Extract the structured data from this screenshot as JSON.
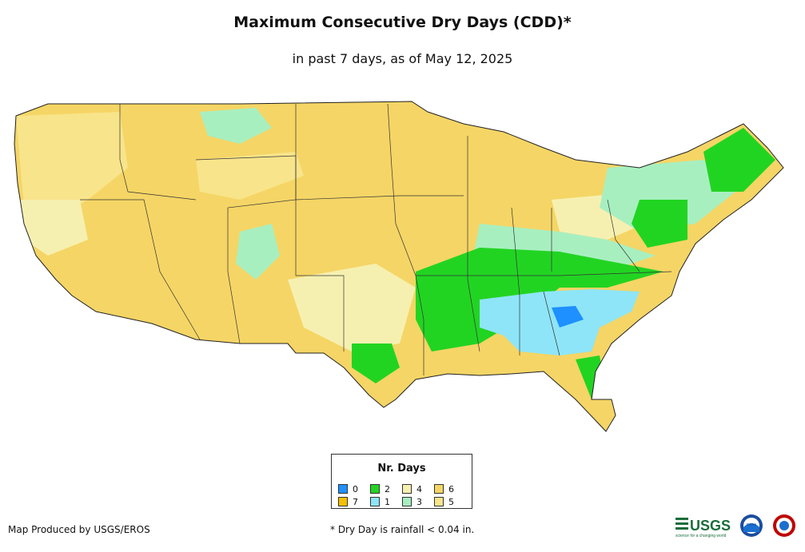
{
  "title": "Maximum Consecutive Dry Days (CDD)*",
  "subtitle": "in past 7 days, as of May 12, 2025",
  "legend": {
    "title": "Nr. Days",
    "items": [
      {
        "label": "0",
        "color": "#1e90ff"
      },
      {
        "label": "2",
        "color": "#22d422"
      },
      {
        "label": "4",
        "color": "#f6f0b0"
      },
      {
        "label": "6",
        "color": "#f5d565"
      },
      {
        "label": "7",
        "color": "#f5c000"
      },
      {
        "label": "1",
        "color": "#8ee5f7"
      },
      {
        "label": "3",
        "color": "#a8efc0"
      },
      {
        "label": "5",
        "color": "#f8e48a"
      }
    ]
  },
  "credit": "Map Produced by USGS/EROS",
  "footnote": "* Dry Day is rainfall < 0.04 in.",
  "logos": {
    "usgs": "USGS",
    "usgs_tagline": "science for a changing world",
    "noaa": "noaa"
  }
}
